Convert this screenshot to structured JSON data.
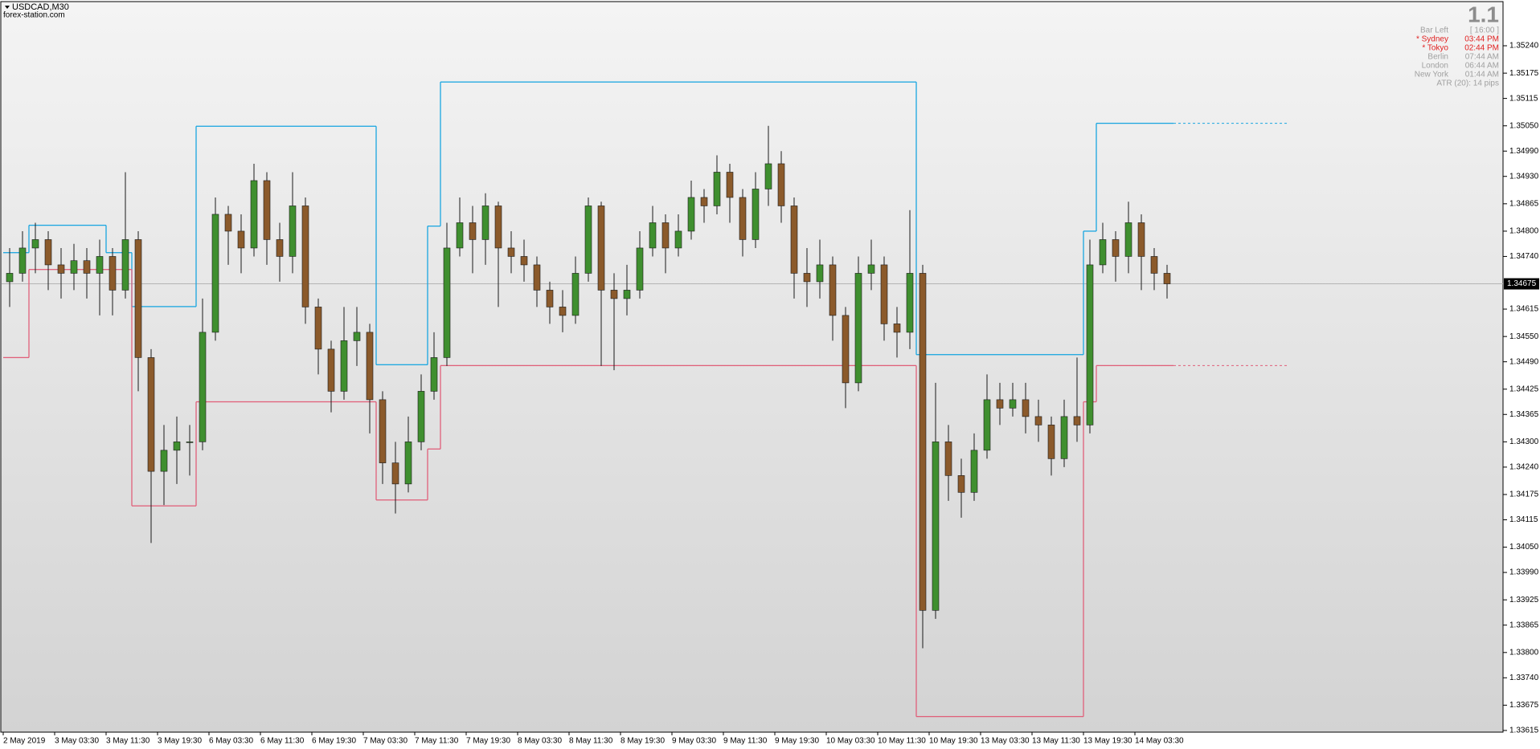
{
  "chart_data": {
    "type": "candlestick",
    "title": "USDCAD,M30",
    "subtitle": "forex-station.com",
    "x_labels": [
      "2 May 2019",
      "3 May 03:30",
      "3 May 11:30",
      "3 May 19:30",
      "6 May 03:30",
      "6 May 11:30",
      "6 May 19:30",
      "7 May 03:30",
      "7 May 11:30",
      "7 May 19:30",
      "8 May 03:30",
      "8 May 11:30",
      "8 May 19:30",
      "9 May 03:30",
      "9 May 11:30",
      "9 May 19:30",
      "10 May 03:30",
      "10 May 11:30",
      "10 May 19:30",
      "13 May 03:30",
      "13 May 11:30",
      "13 May 19:30",
      "14 May 03:30"
    ],
    "ohlc": [
      [
        1.3468,
        1.3476,
        1.3462,
        1.347
      ],
      [
        1.347,
        1.348,
        1.3468,
        1.3476
      ],
      [
        1.3476,
        1.3482,
        1.347,
        1.3478
      ],
      [
        1.3478,
        1.348,
        1.3466,
        1.3472
      ],
      [
        1.3472,
        1.3476,
        1.3464,
        1.347
      ],
      [
        1.347,
        1.3477,
        1.3466,
        1.3473
      ],
      [
        1.3473,
        1.3476,
        1.3464,
        1.347
      ],
      [
        1.347,
        1.3478,
        1.346,
        1.3474
      ],
      [
        1.3474,
        1.3476,
        1.346,
        1.3466
      ],
      [
        1.3466,
        1.3494,
        1.3464,
        1.3478
      ],
      [
        1.3478,
        1.348,
        1.3442,
        1.345
      ],
      [
        1.345,
        1.3452,
        1.3406,
        1.3423
      ],
      [
        1.3423,
        1.3434,
        1.3415,
        1.3428
      ],
      [
        1.3428,
        1.3436,
        1.342,
        1.343
      ],
      [
        1.343,
        1.3434,
        1.3422,
        1.343
      ],
      [
        1.343,
        1.3464,
        1.3428,
        1.3456
      ],
      [
        1.3456,
        1.3488,
        1.3454,
        1.3484
      ],
      [
        1.3484,
        1.3486,
        1.3472,
        1.348
      ],
      [
        1.348,
        1.3484,
        1.347,
        1.3476
      ],
      [
        1.3476,
        1.3496,
        1.3474,
        1.3492
      ],
      [
        1.3492,
        1.3494,
        1.3472,
        1.3478
      ],
      [
        1.3478,
        1.3482,
        1.3468,
        1.3474
      ],
      [
        1.3474,
        1.3494,
        1.347,
        1.3486
      ],
      [
        1.3486,
        1.3488,
        1.3458,
        1.3462
      ],
      [
        1.3462,
        1.3464,
        1.3446,
        1.3452
      ],
      [
        1.3452,
        1.3454,
        1.3437,
        1.3442
      ],
      [
        1.3442,
        1.3462,
        1.344,
        1.3454
      ],
      [
        1.3454,
        1.3462,
        1.3448,
        1.3456
      ],
      [
        1.3456,
        1.3458,
        1.3432,
        1.344
      ],
      [
        1.344,
        1.3442,
        1.342,
        1.3425
      ],
      [
        1.3425,
        1.343,
        1.3413,
        1.342
      ],
      [
        1.342,
        1.3436,
        1.3418,
        1.343
      ],
      [
        1.343,
        1.3446,
        1.3428,
        1.3442
      ],
      [
        1.3442,
        1.3456,
        1.344,
        1.345
      ],
      [
        1.345,
        1.3482,
        1.3448,
        1.3476
      ],
      [
        1.3476,
        1.3488,
        1.3474,
        1.3482
      ],
      [
        1.3482,
        1.3486,
        1.347,
        1.3478
      ],
      [
        1.3478,
        1.3489,
        1.3472,
        1.3486
      ],
      [
        1.3486,
        1.3487,
        1.3462,
        1.3476
      ],
      [
        1.3476,
        1.348,
        1.347,
        1.3474
      ],
      [
        1.3474,
        1.3478,
        1.3468,
        1.3472
      ],
      [
        1.3472,
        1.3474,
        1.3462,
        1.3466
      ],
      [
        1.3466,
        1.3468,
        1.3458,
        1.3462
      ],
      [
        1.3462,
        1.3466,
        1.3456,
        1.346
      ],
      [
        1.346,
        1.3474,
        1.3458,
        1.347
      ],
      [
        1.347,
        1.3488,
        1.3468,
        1.3486
      ],
      [
        1.3486,
        1.3487,
        1.3448,
        1.3466
      ],
      [
        1.3466,
        1.347,
        1.3447,
        1.3464
      ],
      [
        1.3464,
        1.3472,
        1.346,
        1.3466
      ],
      [
        1.3466,
        1.348,
        1.3464,
        1.3476
      ],
      [
        1.3476,
        1.3486,
        1.3474,
        1.3482
      ],
      [
        1.3482,
        1.3484,
        1.347,
        1.3476
      ],
      [
        1.3476,
        1.3484,
        1.3474,
        1.348
      ],
      [
        1.348,
        1.3492,
        1.3478,
        1.3488
      ],
      [
        1.3488,
        1.349,
        1.3482,
        1.3486
      ],
      [
        1.3486,
        1.3498,
        1.3484,
        1.3494
      ],
      [
        1.3494,
        1.3496,
        1.3482,
        1.3488
      ],
      [
        1.3488,
        1.349,
        1.3474,
        1.3478
      ],
      [
        1.3478,
        1.3494,
        1.3476,
        1.349
      ],
      [
        1.349,
        1.3505,
        1.3486,
        1.3496
      ],
      [
        1.3496,
        1.3499,
        1.3482,
        1.3486
      ],
      [
        1.3486,
        1.3488,
        1.3464,
        1.347
      ],
      [
        1.347,
        1.3476,
        1.3462,
        1.3468
      ],
      [
        1.3468,
        1.3478,
        1.3464,
        1.3472
      ],
      [
        1.3472,
        1.3474,
        1.3454,
        1.346
      ],
      [
        1.346,
        1.3462,
        1.3438,
        1.3444
      ],
      [
        1.3444,
        1.3474,
        1.3442,
        1.347
      ],
      [
        1.347,
        1.3478,
        1.3466,
        1.3472
      ],
      [
        1.3472,
        1.3474,
        1.3454,
        1.3458
      ],
      [
        1.3458,
        1.3462,
        1.345,
        1.3456
      ],
      [
        1.3456,
        1.3485,
        1.3452,
        1.347
      ],
      [
        1.347,
        1.3472,
        1.3381,
        1.339
      ],
      [
        1.339,
        1.3444,
        1.3388,
        1.343
      ],
      [
        1.343,
        1.3434,
        1.3416,
        1.3422
      ],
      [
        1.3422,
        1.3426,
        1.3412,
        1.3418
      ],
      [
        1.3418,
        1.3432,
        1.3416,
        1.3428
      ],
      [
        1.3428,
        1.3446,
        1.3426,
        1.344
      ],
      [
        1.344,
        1.3444,
        1.3434,
        1.3438
      ],
      [
        1.3438,
        1.3444,
        1.3436,
        1.344
      ],
      [
        1.344,
        1.3444,
        1.3432,
        1.3436
      ],
      [
        1.3436,
        1.344,
        1.343,
        1.3434
      ],
      [
        1.3434,
        1.3436,
        1.3422,
        1.3426
      ],
      [
        1.3426,
        1.344,
        1.3424,
        1.3436
      ],
      [
        1.3436,
        1.345,
        1.343,
        1.3434
      ],
      [
        1.3434,
        1.3478,
        1.3432,
        1.3472
      ],
      [
        1.3472,
        1.3482,
        1.347,
        1.3478
      ],
      [
        1.3478,
        1.348,
        1.3468,
        1.3474
      ],
      [
        1.3474,
        1.3487,
        1.347,
        1.3482
      ],
      [
        1.3482,
        1.3484,
        1.3466,
        1.3474
      ],
      [
        1.3474,
        1.3476,
        1.3466,
        1.347
      ],
      [
        1.347,
        1.3472,
        1.3464,
        1.34675
      ]
    ],
    "upper": [
      1.34749,
      1.34749,
      1.34814,
      1.34814,
      1.34814,
      1.34814,
      1.34814,
      1.34814,
      1.34749,
      1.34749,
      1.34621,
      1.34621,
      1.34621,
      1.34621,
      1.34621,
      1.35049,
      1.35049,
      1.35049,
      1.35049,
      1.35049,
      1.35049,
      1.35049,
      1.35049,
      1.35049,
      1.35049,
      1.35049,
      1.35049,
      1.35049,
      1.35049,
      1.34483,
      1.34483,
      1.34483,
      1.34483,
      1.34812,
      1.35154,
      1.35154,
      1.35154,
      1.35154,
      1.35154,
      1.35154,
      1.35154,
      1.35154,
      1.35154,
      1.35154,
      1.35154,
      1.35154,
      1.35154,
      1.35154,
      1.35154,
      1.35154,
      1.35154,
      1.35154,
      1.35154,
      1.35154,
      1.35154,
      1.35154,
      1.35154,
      1.35154,
      1.35154,
      1.35154,
      1.35154,
      1.35154,
      1.35154,
      1.35154,
      1.35154,
      1.35154,
      1.35154,
      1.35154,
      1.35154,
      1.35154,
      1.35154,
      1.34507,
      1.34507,
      1.34507,
      1.34507,
      1.34507,
      1.34507,
      1.34507,
      1.34507,
      1.34507,
      1.34507,
      1.34507,
      1.34507,
      1.34507,
      1.348,
      1.35056,
      1.35056,
      1.35056,
      1.35056,
      1.35056,
      1.35056
    ],
    "lower": [
      1.345,
      1.345,
      1.34709,
      1.34709,
      1.34709,
      1.34709,
      1.34709,
      1.34709,
      1.34709,
      1.34709,
      1.34148,
      1.34148,
      1.34148,
      1.34148,
      1.34148,
      1.34395,
      1.34395,
      1.34395,
      1.34395,
      1.34395,
      1.34395,
      1.34395,
      1.34395,
      1.34395,
      1.34395,
      1.34395,
      1.34395,
      1.34395,
      1.34395,
      1.34162,
      1.34162,
      1.34162,
      1.34162,
      1.34283,
      1.34481,
      1.34481,
      1.34481,
      1.34481,
      1.34481,
      1.34481,
      1.34481,
      1.34481,
      1.34481,
      1.34481,
      1.34481,
      1.34481,
      1.34481,
      1.34481,
      1.34481,
      1.34481,
      1.34481,
      1.34481,
      1.34481,
      1.34481,
      1.34481,
      1.34481,
      1.34481,
      1.34481,
      1.34481,
      1.34481,
      1.34481,
      1.34481,
      1.34481,
      1.34481,
      1.34481,
      1.34481,
      1.34481,
      1.34481,
      1.34481,
      1.34481,
      1.34481,
      1.33648,
      1.33648,
      1.33648,
      1.33648,
      1.33648,
      1.33648,
      1.33648,
      1.33648,
      1.33648,
      1.33648,
      1.33648,
      1.33648,
      1.33648,
      1.34395,
      1.34481,
      1.34481,
      1.34481,
      1.34481,
      1.34481,
      1.34481
    ],
    "colors": {
      "up": "#3f8f2f",
      "down": "#8b5a2b",
      "upper": "#1aa6e0",
      "lower": "#e0607a",
      "wick": "#1a1a1a"
    },
    "ylim": [
      1.33611,
      1.35341
    ],
    "yticks": [
      {
        "value": 1.3524,
        "label": "1.35240"
      },
      1.35175,
      1.35115,
      {
        "value": 1.3505,
        "label": "1.35050"
      },
      {
        "value": 1.3499,
        "label": "1.34990"
      },
      {
        "value": 1.3493,
        "label": "1.34930"
      },
      1.34865,
      {
        "value": 1.348,
        "label": "1.34800"
      },
      {
        "value": 1.3474,
        "label": "1.34740"
      },
      1.34615,
      {
        "value": 1.3455,
        "label": "1.34550"
      },
      {
        "value": 1.3449,
        "label": "1.34490"
      },
      1.34425,
      1.34365,
      {
        "value": 1.343,
        "label": "1.34300"
      },
      {
        "value": 1.3424,
        "label": "1.34240"
      },
      1.34175,
      1.34115,
      {
        "value": 1.3405,
        "label": "1.34050"
      },
      {
        "value": 1.3399,
        "label": "1.33990"
      },
      1.33925,
      1.33865,
      {
        "value": 1.338,
        "label": "1.33800"
      },
      {
        "value": 1.3374,
        "label": "1.33740"
      },
      1.33675,
      1.33615
    ],
    "info": {
      "big": "1.1",
      "rows": [
        {
          "label": "Bar Left",
          "value": "[ 16:00 ]",
          "color": "#a0a0a0"
        },
        {
          "label": "* Sydney",
          "value": "03:44 PM",
          "color": "#e02020"
        },
        {
          "label": "* Tokyo",
          "value": "02:44 PM",
          "color": "#e02020"
        },
        {
          "label": "Berlin",
          "value": "07:44 AM",
          "color": "#a0a0a0"
        },
        {
          "label": "London",
          "value": "06:44 AM",
          "color": "#a0a0a0"
        },
        {
          "label": "New York",
          "value": "01:44 AM",
          "color": "#a0a0a0"
        }
      ],
      "atr": "ATR (20): 14 pips"
    }
  }
}
